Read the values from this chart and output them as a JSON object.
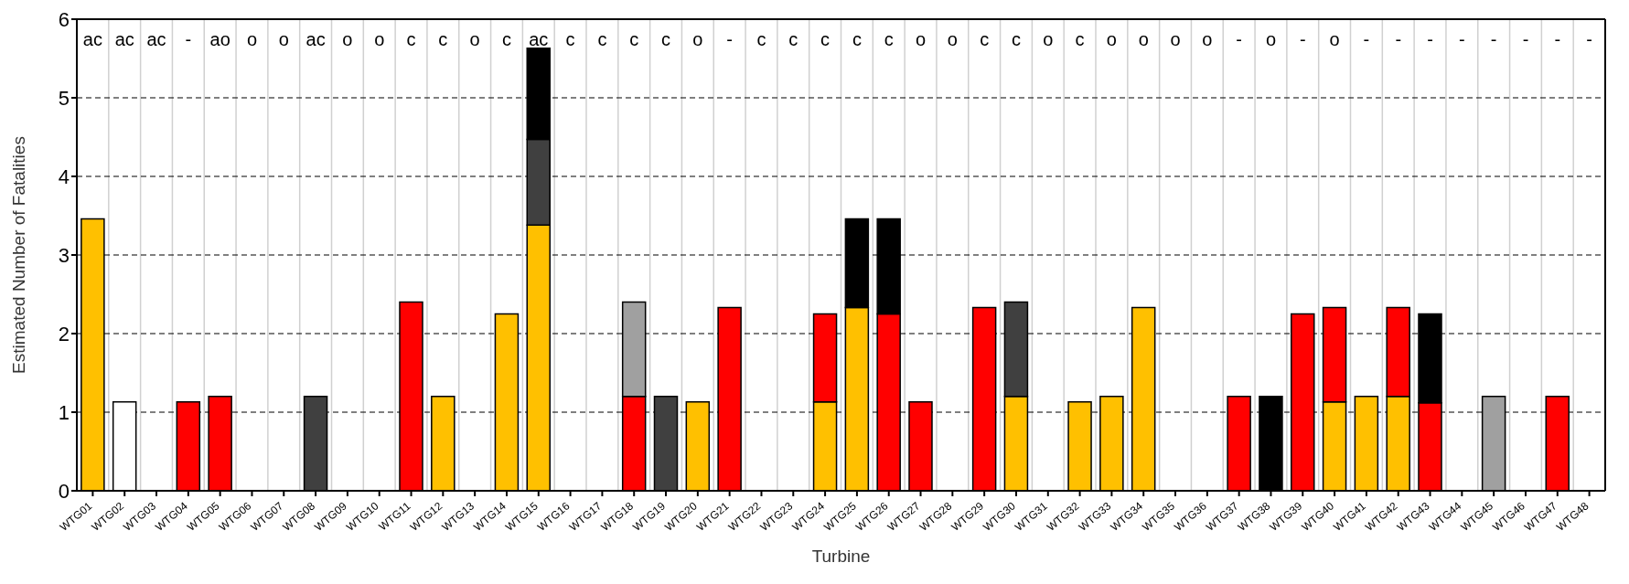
{
  "chart_data": {
    "type": "bar",
    "stacked": true,
    "xlabel": "Turbine",
    "ylabel": "Estimated Number of Fatalities",
    "categories": [
      "WTG01",
      "WTG02",
      "WTG03",
      "WTG04",
      "WTG05",
      "WTG06",
      "WTG07",
      "WTG08",
      "WTG09",
      "WTG10",
      "WTG11",
      "WTG12",
      "WTG13",
      "WTG14",
      "WTG15",
      "WTG16",
      "WTG17",
      "WTG18",
      "WTG19",
      "WTG20",
      "WTG21",
      "WTG22",
      "WTG23",
      "WTG24",
      "WTG25",
      "WTG26",
      "WTG27",
      "WTG28",
      "WTG29",
      "WTG30",
      "WTG31",
      "WTG32",
      "WTG33",
      "WTG34",
      "WTG35",
      "WTG36",
      "WTG37",
      "WTG38",
      "WTG39",
      "WTG40",
      "WTG41",
      "WTG42",
      "WTG43",
      "WTG44",
      "WTG45",
      "WTG46",
      "WTG47",
      "WTG48"
    ],
    "series": [
      {
        "color": "#ffc000",
        "values": [
          3.46,
          null,
          null,
          null,
          null,
          null,
          null,
          null,
          null,
          null,
          null,
          1.2,
          null,
          2.25,
          3.38,
          null,
          null,
          null,
          null,
          1.13,
          null,
          null,
          null,
          1.13,
          2.33,
          null,
          null,
          null,
          null,
          1.2,
          null,
          1.13,
          1.2,
          2.33,
          null,
          null,
          null,
          null,
          null,
          1.13,
          1.2,
          1.2,
          null,
          null,
          null,
          null,
          null,
          null
        ]
      },
      {
        "color": "#ff0000",
        "values": [
          null,
          null,
          null,
          1.13,
          1.2,
          null,
          null,
          null,
          null,
          null,
          2.4,
          null,
          null,
          null,
          null,
          null,
          null,
          1.2,
          null,
          null,
          2.33,
          null,
          null,
          1.12,
          null,
          2.25,
          1.13,
          null,
          2.33,
          null,
          null,
          null,
          null,
          null,
          null,
          null,
          1.2,
          null,
          2.25,
          1.2,
          null,
          1.13,
          1.12,
          null,
          null,
          null,
          1.2,
          null
        ]
      },
      {
        "color": "#ffffff",
        "values": [
          null,
          1.13,
          null,
          null,
          null,
          null,
          null,
          null,
          null,
          null,
          null,
          null,
          null,
          null,
          null,
          null,
          null,
          null,
          null,
          null,
          null,
          null,
          null,
          null,
          null,
          null,
          null,
          null,
          null,
          null,
          null,
          null,
          null,
          null,
          null,
          null,
          null,
          null,
          null,
          null,
          null,
          null,
          null,
          null,
          null,
          null,
          null,
          null
        ]
      },
      {
        "color": "#404040",
        "values": [
          null,
          null,
          null,
          null,
          null,
          null,
          null,
          1.2,
          null,
          null,
          null,
          null,
          null,
          null,
          1.09,
          null,
          null,
          null,
          1.2,
          null,
          null,
          null,
          null,
          null,
          null,
          null,
          null,
          null,
          null,
          1.2,
          null,
          null,
          null,
          null,
          null,
          null,
          null,
          null,
          null,
          null,
          null,
          null,
          null,
          null,
          null,
          null,
          null,
          null
        ]
      },
      {
        "color": "#a0a0a0",
        "values": [
          null,
          null,
          null,
          null,
          null,
          null,
          null,
          null,
          null,
          null,
          null,
          null,
          null,
          null,
          null,
          null,
          null,
          1.2,
          null,
          null,
          null,
          null,
          null,
          null,
          null,
          null,
          null,
          null,
          null,
          null,
          null,
          null,
          null,
          null,
          null,
          null,
          null,
          null,
          null,
          null,
          null,
          null,
          null,
          null,
          1.2,
          null,
          null,
          null
        ]
      },
      {
        "color": "#000000",
        "values": [
          null,
          null,
          null,
          null,
          null,
          null,
          null,
          null,
          null,
          null,
          null,
          null,
          null,
          null,
          1.16,
          null,
          null,
          null,
          null,
          null,
          null,
          null,
          null,
          null,
          1.13,
          1.21,
          null,
          null,
          null,
          null,
          null,
          null,
          null,
          null,
          null,
          null,
          null,
          1.2,
          null,
          null,
          null,
          null,
          1.13,
          null,
          null,
          null,
          null,
          null
        ]
      }
    ],
    "ylim": [
      0,
      6
    ],
    "yticks": [
      0,
      1,
      2,
      3,
      4,
      5,
      6
    ],
    "grid": true,
    "annotations": [
      "ac",
      "ac",
      "ac",
      "-",
      "ao",
      "o",
      "o",
      "ac",
      "o",
      "o",
      "c",
      "c",
      "o",
      "c",
      "ac",
      "c",
      "c",
      "c",
      "c",
      "o",
      "-",
      "c",
      "c",
      "c",
      "c",
      "c",
      "o",
      "o",
      "c",
      "c",
      "o",
      "c",
      "o",
      "o",
      "o",
      "o",
      "-",
      "o",
      "-",
      "o",
      "-",
      "-",
      "-",
      "-",
      "-",
      "-",
      "-",
      "-"
    ]
  }
}
